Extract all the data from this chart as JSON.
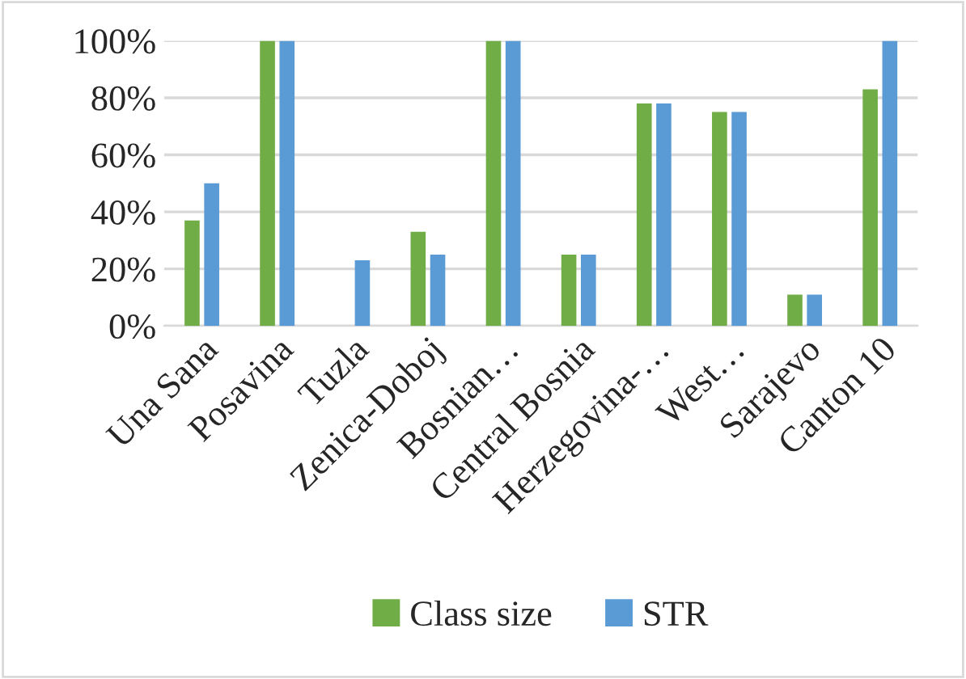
{
  "chart_data": {
    "type": "bar",
    "categories": [
      "Una Sana",
      "Posavina",
      "Tuzla",
      "Zenica-Doboj",
      "Bosnian…",
      "Central Bosnia",
      "Herzegovina-…",
      "West…",
      "Sarajevo",
      "Canton 10"
    ],
    "series": [
      {
        "name": "Class size",
        "color": "#70ad47",
        "values": [
          37,
          100,
          null,
          33,
          100,
          25,
          78,
          75,
          11,
          83
        ]
      },
      {
        "name": "STR",
        "color": "#5b9bd5",
        "values": [
          50,
          100,
          23,
          25,
          100,
          25,
          78,
          75,
          11,
          100
        ]
      }
    ],
    "ylim": [
      0,
      100
    ],
    "yticks": [
      {
        "value": 0,
        "label": "0%"
      },
      {
        "value": 20,
        "label": "20%"
      },
      {
        "value": 40,
        "label": "40%"
      },
      {
        "value": 60,
        "label": "60%"
      },
      {
        "value": 80,
        "label": "80%"
      },
      {
        "value": 100,
        "label": "100%"
      }
    ],
    "grid": "y",
    "legend": "bottom"
  }
}
